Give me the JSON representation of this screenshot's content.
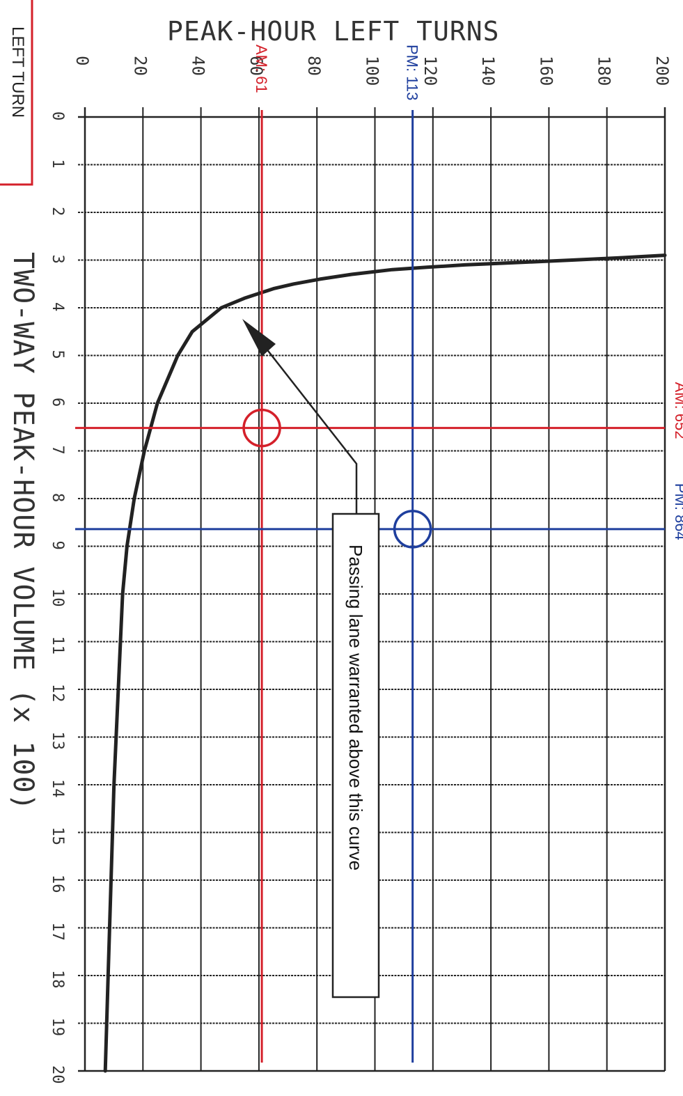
{
  "chart_data": {
    "type": "line",
    "title": "PEAK-HOUR LEFT TURNS",
    "xlabel": "TWO-WAY PEAK-HOUR VOLUME (x 100)",
    "ylabel": "PEAK-HOUR LEFT TURNS",
    "corner_label": "LEFT TURN",
    "xlim": [
      0,
      20
    ],
    "ylim": [
      0,
      200
    ],
    "x_ticks": [
      "0",
      "1",
      "2",
      "3",
      "4",
      "5",
      "6",
      "7",
      "8",
      "9",
      "10",
      "11",
      "12",
      "13",
      "14",
      "15",
      "16",
      "17",
      "18",
      "19",
      "20"
    ],
    "y_ticks": [
      "0",
      "20",
      "40",
      "60",
      "80",
      "100",
      "120",
      "140",
      "160",
      "180",
      "200"
    ],
    "grid": true,
    "series": [
      {
        "name": "",
        "x": [
          20,
          18,
          16,
          14,
          12,
          10,
          9,
          8,
          7,
          6,
          5,
          4.5,
          4,
          3.8,
          3.6,
          3.5,
          3.4,
          3.3,
          3.2,
          3.15,
          3.1,
          3.05,
          3.0,
          2.95,
          2.9
        ],
        "y": [
          7,
          8,
          9,
          10,
          11.5,
          13,
          14.5,
          17,
          20.5,
          25,
          32,
          37,
          47,
          55,
          65,
          72,
          81,
          92,
          106,
          118,
          131,
          150,
          168,
          185,
          200
        ]
      }
    ],
    "reference_lines": [
      {
        "label": "AM: 61",
        "axis": "y",
        "value": 61,
        "color": "#d4202a"
      },
      {
        "label": "PM: 113",
        "axis": "y",
        "value": 113,
        "color": "#1f3f9e"
      },
      {
        "label": "AM: 652",
        "axis": "x",
        "value": 6.52,
        "color": "#d4202a"
      },
      {
        "label": "PM: 864",
        "axis": "x",
        "value": 8.64,
        "color": "#1f3f9e"
      }
    ],
    "points": [
      {
        "x": 6.52,
        "y": 61,
        "color": "#d4202a"
      },
      {
        "x": 8.64,
        "y": 113,
        "color": "#1f3f9e"
      }
    ],
    "annotation": "Passing lane warranted above this curve"
  }
}
